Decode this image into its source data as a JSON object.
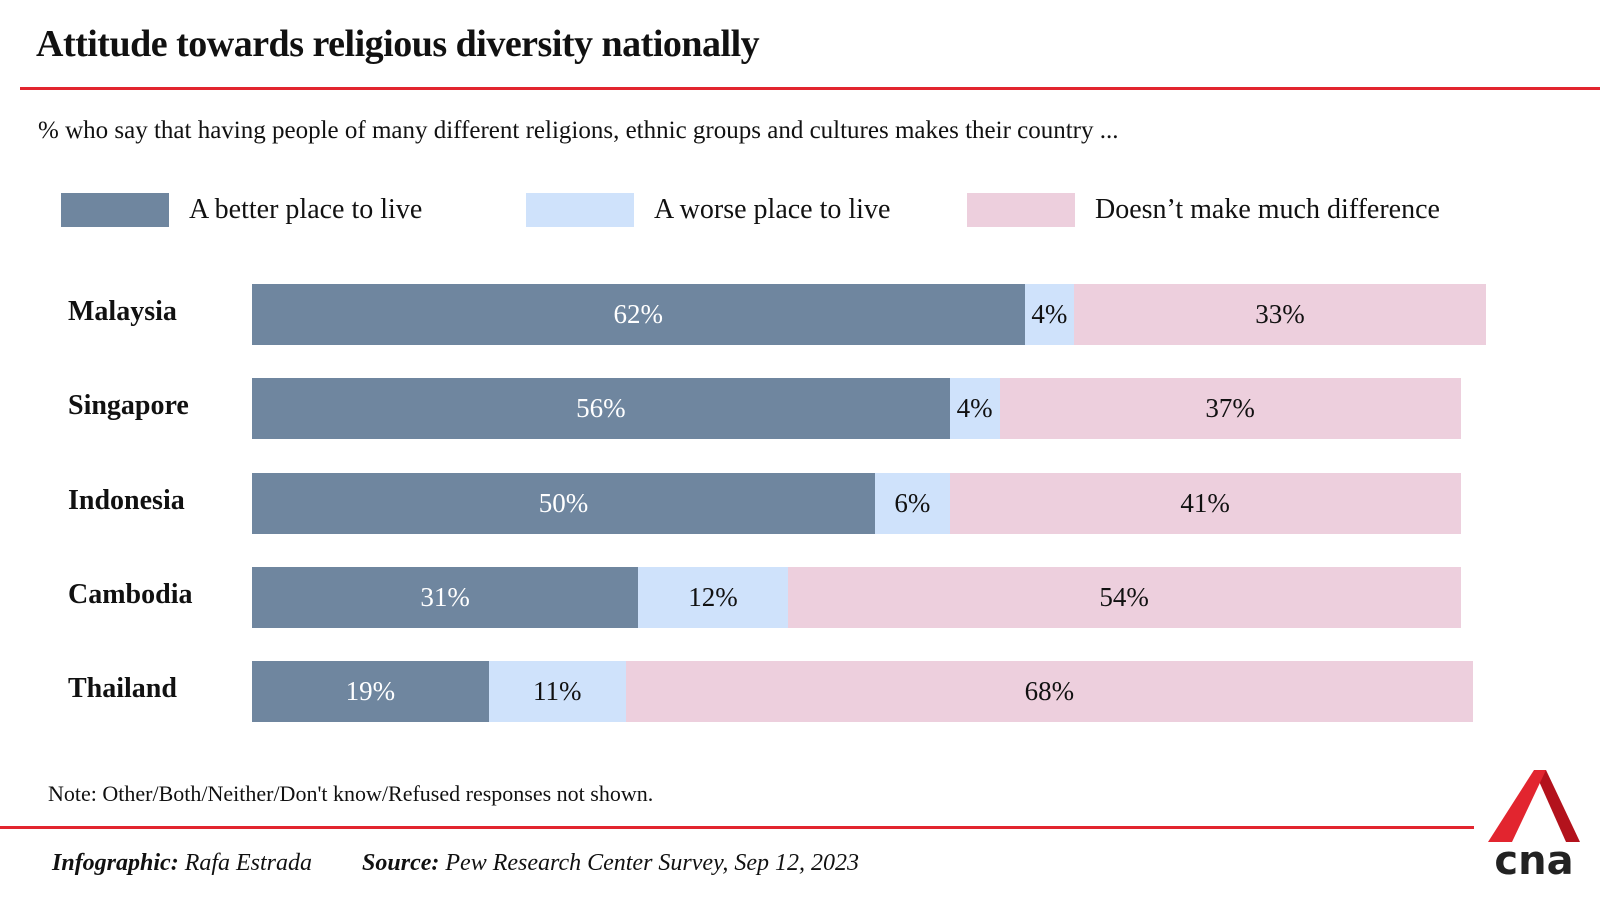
{
  "header": {
    "title": "Attitude towards religious diversity nationally",
    "subtitle": "% who say that having people of many different religions, ethnic groups and cultures makes their country ..."
  },
  "colors": {
    "better": "#6f869f",
    "worse": "#cfe2fb",
    "no_difference": "#edcfdd",
    "accent_red": "#e2252f",
    "text_on_dark": "#ffffff",
    "text_on_light": "#111111"
  },
  "legend": [
    {
      "label": "A better place to live",
      "key": "better"
    },
    {
      "label": "A worse place to live",
      "key": "worse"
    },
    {
      "label": "Doesn’t make much difference",
      "key": "no_difference"
    }
  ],
  "chart_data": {
    "type": "bar",
    "orientation": "horizontal-stacked",
    "title": "Attitude towards religious diversity nationally",
    "subtitle": "% who say that having people of many different religions, ethnic groups and cultures makes their country ...",
    "categories": [
      "Malaysia",
      "Singapore",
      "Indonesia",
      "Cambodia",
      "Thailand"
    ],
    "series": [
      {
        "name": "A better place to live",
        "key": "better",
        "values": [
          62,
          56,
          50,
          31,
          19
        ]
      },
      {
        "name": "A worse place to live",
        "key": "worse",
        "values": [
          4,
          4,
          6,
          12,
          11
        ]
      },
      {
        "name": "Doesn’t make much difference",
        "key": "no_difference",
        "values": [
          33,
          37,
          41,
          54,
          68
        ]
      }
    ],
    "value_suffix": "%",
    "xlim": [
      0,
      100
    ],
    "grid": false,
    "legend_position": "top"
  },
  "footer": {
    "note": "Note: Other/Both/Neither/Don't know/Refused responses not shown.",
    "infographic_label": "Infographic:",
    "infographic_value": "Rafa Estrada",
    "source_label": "Source:",
    "source_value": "Pew Research Center Survey, Sep 12, 2023",
    "logo_text": "cna"
  }
}
